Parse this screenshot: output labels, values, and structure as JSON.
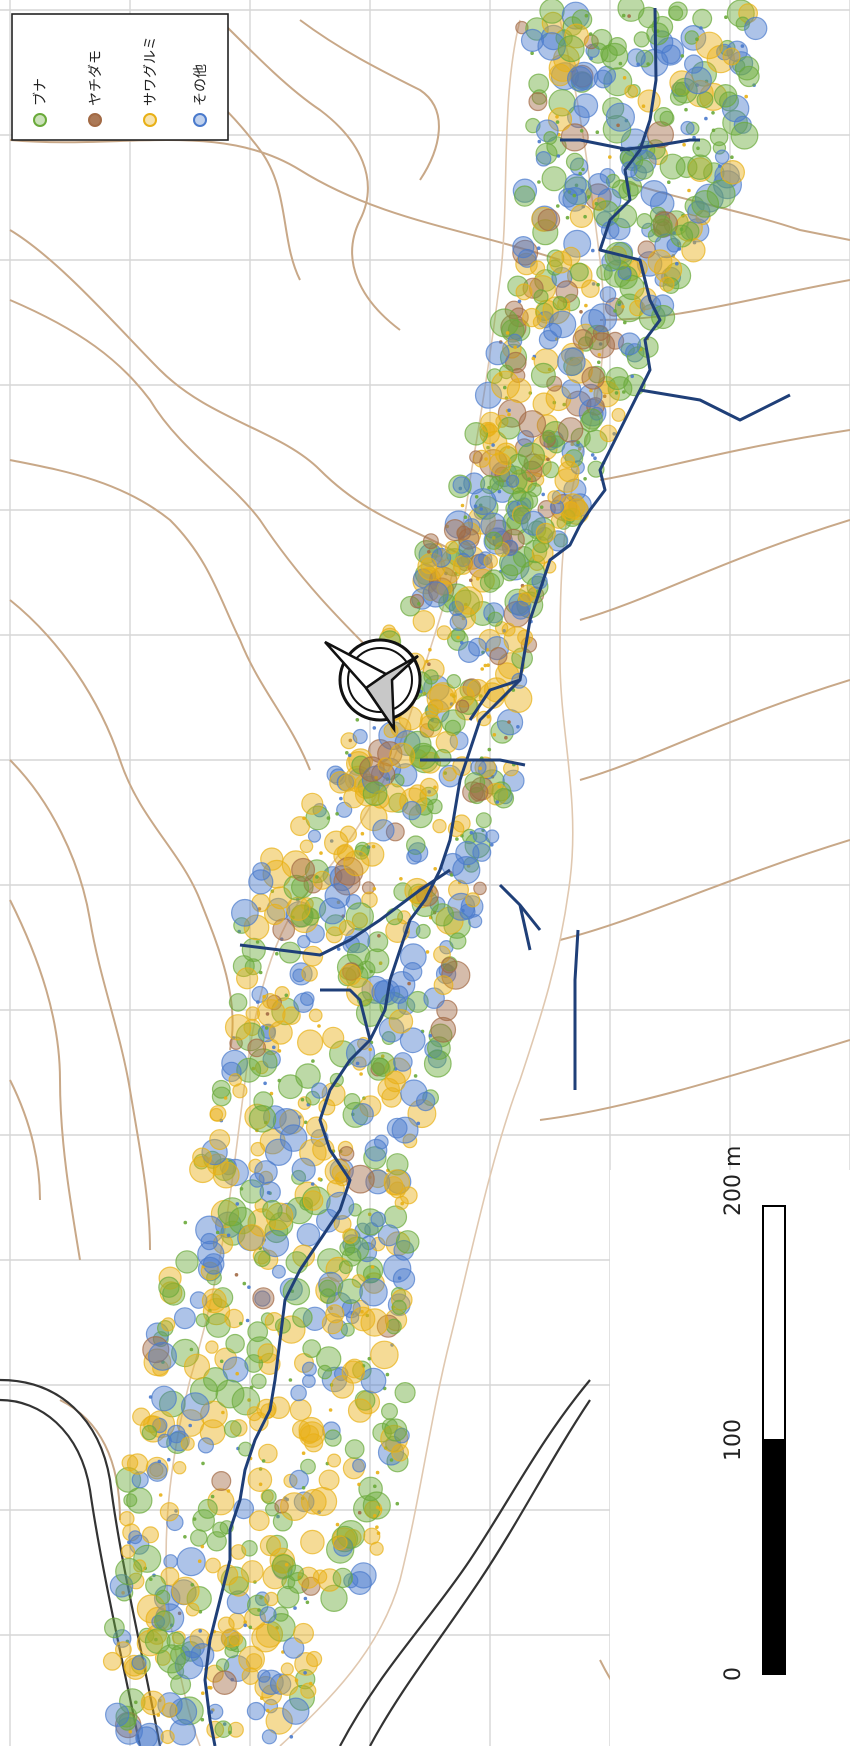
{
  "legend": {
    "items": [
      {
        "label": "ブナ",
        "color": "#6aaa3a"
      },
      {
        "label": "ヤチダモ",
        "color": "#a26a45"
      },
      {
        "label": "サワグルミ",
        "color": "#e8b016"
      },
      {
        "label": "その他",
        "color": "#4a7acc"
      }
    ]
  },
  "scale_bar": {
    "ticks": [
      "0",
      "100",
      "200 m"
    ]
  },
  "colors": {
    "contour": "#c8a888",
    "contour_dark": "#333333",
    "stream": "#1f3f78",
    "grid": "#d6d6d6"
  }
}
